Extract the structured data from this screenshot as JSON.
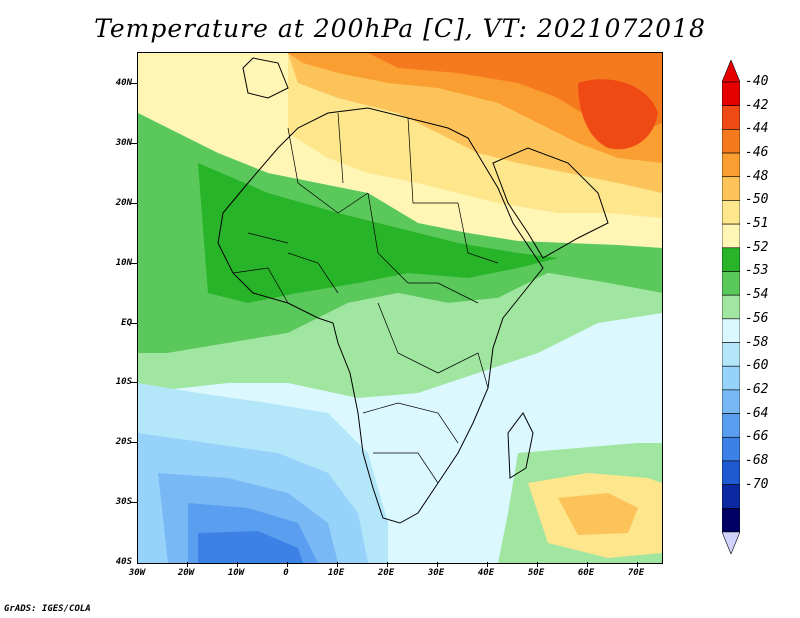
{
  "title": "Temperature at 200hPa [C], VT: 2021072018",
  "credit": "GrADS: IGES/COLA",
  "axes": {
    "lat_labels": [
      "40N",
      "30N",
      "20N",
      "10N",
      "EQ",
      "10S",
      "20S",
      "30S",
      "40S"
    ],
    "lat_values": [
      40,
      30,
      20,
      10,
      0,
      -10,
      -20,
      -30,
      -40
    ],
    "lon_labels": [
      "30W",
      "20W",
      "10W",
      "0",
      "10E",
      "20E",
      "30E",
      "40E",
      "50E",
      "60E",
      "70E"
    ],
    "lon_values": [
      -30,
      -20,
      -10,
      0,
      10,
      20,
      30,
      40,
      50,
      60,
      70
    ],
    "lon_range": [
      -30,
      75
    ],
    "lat_range": [
      -40,
      45
    ]
  },
  "colorbar": {
    "labels": [
      "-40",
      "-42",
      "-44",
      "-46",
      "-48",
      "-50",
      "-51",
      "-52",
      "-53",
      "-54",
      "-56",
      "-58",
      "-60",
      "-62",
      "-64",
      "-66",
      "-68",
      "-70"
    ],
    "colors": [
      "#e60000",
      "#f04a14",
      "#f57a1e",
      "#fa9e32",
      "#fcc35a",
      "#fde68c",
      "#fff5b4",
      "#28b428",
      "#5ac85a",
      "#a0e6a0",
      "#dcf8ff",
      "#b4e6fa",
      "#96d2fa",
      "#78b9f5",
      "#5a9ef0",
      "#3c82e6",
      "#1e5ad2",
      "#0a28a0",
      "#000064"
    ],
    "top_color": "#e60000",
    "bottom_color": "#d2d2ff"
  }
}
